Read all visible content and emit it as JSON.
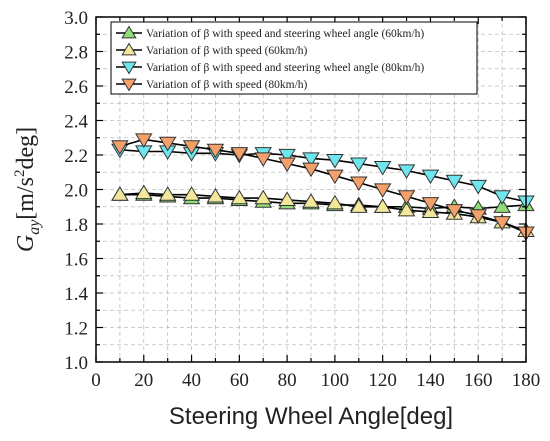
{
  "chart_data": {
    "type": "line",
    "xlabel": "Steering Wheel Angle[deg]",
    "ylabel": "G_ay[m/s²deg]",
    "ylabel_parts": {
      "main": "G",
      "sub": "ay",
      "unit_pre": "[m/s",
      "sup": "2",
      "unit_post": "deg]"
    },
    "xlim": [
      0,
      180
    ],
    "ylim": [
      1.0,
      3.0
    ],
    "xticks": [
      "0",
      "20",
      "40",
      "60",
      "80",
      "100",
      "120",
      "140",
      "160",
      "180"
    ],
    "yticks": [
      "1.0",
      "1.2",
      "1.4",
      "1.6",
      "1.8",
      "2.0",
      "2.2",
      "2.4",
      "2.6",
      "2.8",
      "3.0"
    ],
    "grid": true,
    "legend_position": "top",
    "x": [
      10,
      20,
      30,
      40,
      50,
      60,
      70,
      80,
      90,
      100,
      110,
      120,
      130,
      140,
      150,
      160,
      170,
      180
    ],
    "series": [
      {
        "name": "Variation of β with speed and steering wheel angle (60km/h)",
        "marker": "triangle-up",
        "color": "#8fdc78",
        "values": [
          1.97,
          1.97,
          1.96,
          1.95,
          1.95,
          1.94,
          1.93,
          1.92,
          1.92,
          1.91,
          1.91,
          1.9,
          1.9,
          1.89,
          1.9,
          1.89,
          1.9,
          1.91
        ]
      },
      {
        "name": "Variation of β with speed (60km/h)",
        "marker": "triangle-up",
        "color": "#f3e79b",
        "values": [
          1.97,
          1.98,
          1.97,
          1.97,
          1.96,
          1.95,
          1.95,
          1.94,
          1.93,
          1.92,
          1.9,
          1.9,
          1.88,
          1.87,
          1.86,
          1.84,
          1.81,
          1.76
        ]
      },
      {
        "name": "Variation of β with speed and steering wheel angle (80km/h)",
        "marker": "triangle-down",
        "color": "#6fe6ee",
        "values": [
          2.23,
          2.22,
          2.22,
          2.21,
          2.21,
          2.2,
          2.21,
          2.2,
          2.18,
          2.17,
          2.15,
          2.13,
          2.11,
          2.08,
          2.05,
          2.02,
          1.96,
          1.93
        ]
      },
      {
        "name": "Variation of β with speed (80km/h)",
        "marker": "triangle-down",
        "color": "#f4a06a",
        "values": [
          2.25,
          2.29,
          2.27,
          2.25,
          2.23,
          2.21,
          2.18,
          2.15,
          2.12,
          2.08,
          2.04,
          2.0,
          1.96,
          1.92,
          1.88,
          1.85,
          1.81,
          1.75
        ]
      }
    ]
  }
}
